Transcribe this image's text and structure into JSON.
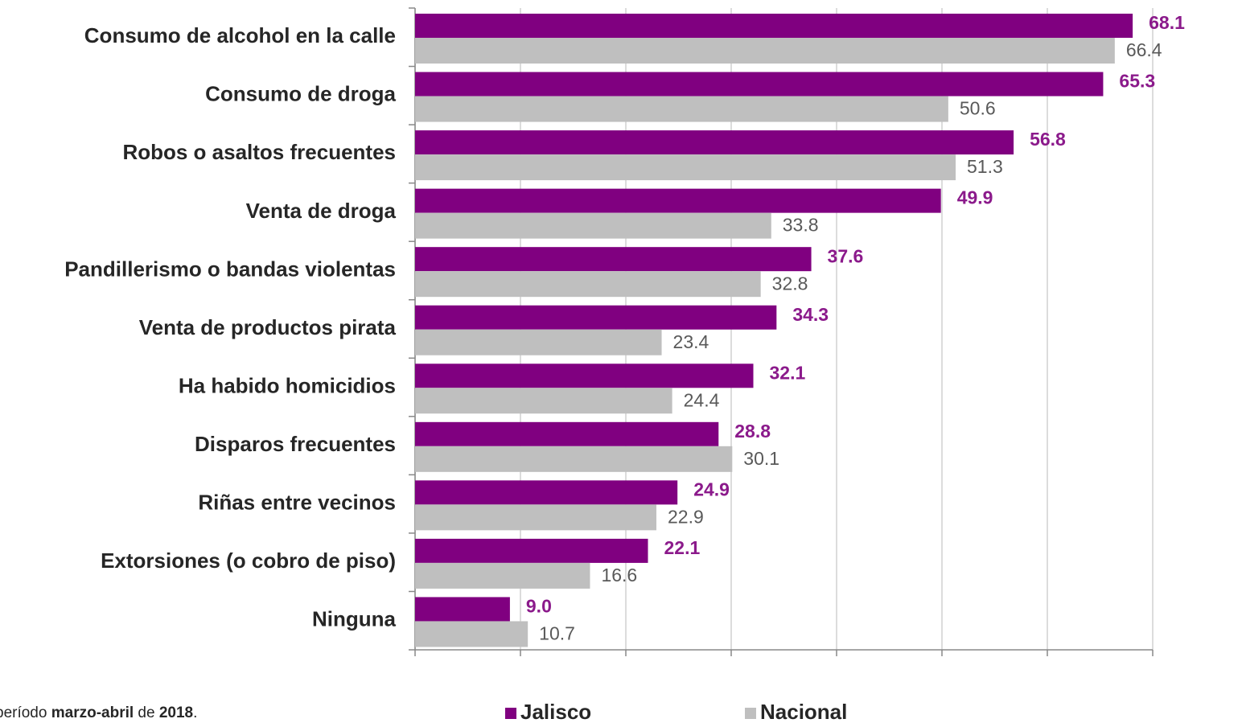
{
  "chart_data": {
    "type": "bar",
    "orientation": "horizontal",
    "categories": [
      "Consumo de alcohol en la calle",
      "Consumo de droga",
      "Robos o asaltos frecuentes",
      "Venta de droga",
      "Pandillerismo o bandas violentas",
      "Venta de productos pirata",
      "Ha habido homicidios",
      "Disparos frecuentes",
      "Riñas entre vecinos",
      "Extorsiones (o cobro de piso)",
      "Ninguna"
    ],
    "series": [
      {
        "name": "Jalisco",
        "color": "#800080",
        "label_color": "#8b1a8b",
        "values": [
          68.1,
          65.3,
          56.8,
          49.9,
          37.6,
          34.3,
          32.1,
          28.8,
          24.9,
          22.1,
          9.0
        ],
        "value_labels": [
          "68.1",
          "65.3",
          "56.8",
          "49.9",
          "37.6",
          "34.3",
          "32.1",
          "28.8",
          "24.9",
          "22.1",
          "9.0"
        ]
      },
      {
        "name": "Nacional",
        "color": "#bfbfbf",
        "label_color": "#595959",
        "values": [
          66.4,
          50.6,
          51.3,
          33.8,
          32.8,
          23.4,
          24.4,
          30.1,
          22.9,
          16.6,
          10.7
        ],
        "value_labels": [
          "66.4",
          "50.6",
          "51.3",
          "33.8",
          "32.8",
          "23.4",
          "24.4",
          "30.1",
          "22.9",
          "16.6",
          "10.7"
        ]
      }
    ],
    "xlim": [
      0,
      70
    ],
    "xticks": [
      0,
      10,
      20,
      30,
      40,
      50,
      60,
      70
    ],
    "grid": true,
    "note_parts": [
      "período ",
      "marzo-abril",
      " de ",
      "2018",
      "."
    ]
  }
}
